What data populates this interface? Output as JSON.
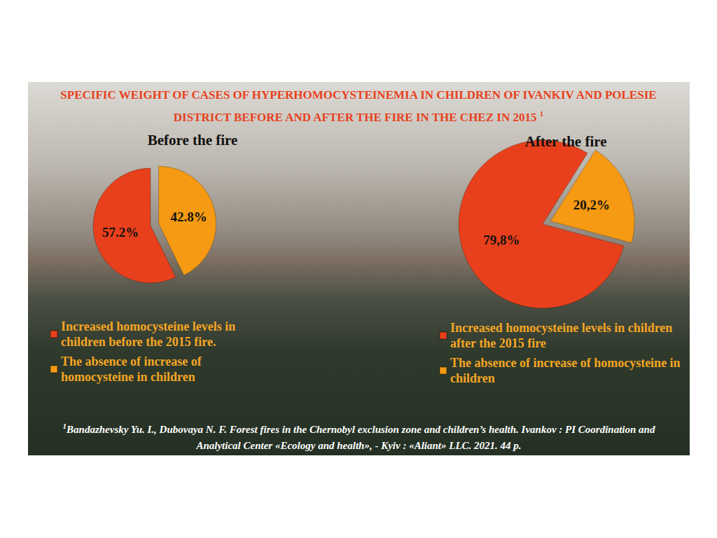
{
  "header": {
    "title": "SPECIFIC WEIGHT OF CASES OF HYPERHOMOCYSTEINEMIA IN CHILDREN OF IVANKIV AND POLESIE DISTRICT BEFORE AND AFTER THE FIRE IN THE CHEZ IN 2015",
    "note_mark": "1"
  },
  "chart_data": [
    {
      "type": "pie",
      "title": "Before the fire",
      "categories": [
        "Increased homocysteine levels in children before the 2015 fire.",
        "The absence of increase of homocysteine in children"
      ],
      "values": [
        57.2,
        42.8
      ],
      "value_labels": [
        "57.2%",
        "42.8%"
      ],
      "colors": [
        "#e8401c",
        "#f59a12"
      ],
      "data_labels": true,
      "legend": "bottom"
    },
    {
      "type": "pie",
      "title": "After the fire",
      "categories": [
        "Increased homocysteine levels in children after the 2015 fire",
        "The absence of increase of homocysteine in children"
      ],
      "values": [
        79.8,
        20.2
      ],
      "value_labels": [
        "79,8%",
        "20,2%"
      ],
      "colors": [
        "#e8401c",
        "#f59a12"
      ],
      "data_labels": true,
      "legend": "bottom"
    }
  ],
  "footnote": {
    "mark": "1",
    "text": "Bandazhevsky Yu. I., Dubovaya N. F. Forest fires in the Chernobyl exclusion zone and children’s health. Ivankov : PI Coordination and Analytical Center «Ecology and health», - Kyiv : «Aliant» LLC. 2021. 44 p."
  }
}
